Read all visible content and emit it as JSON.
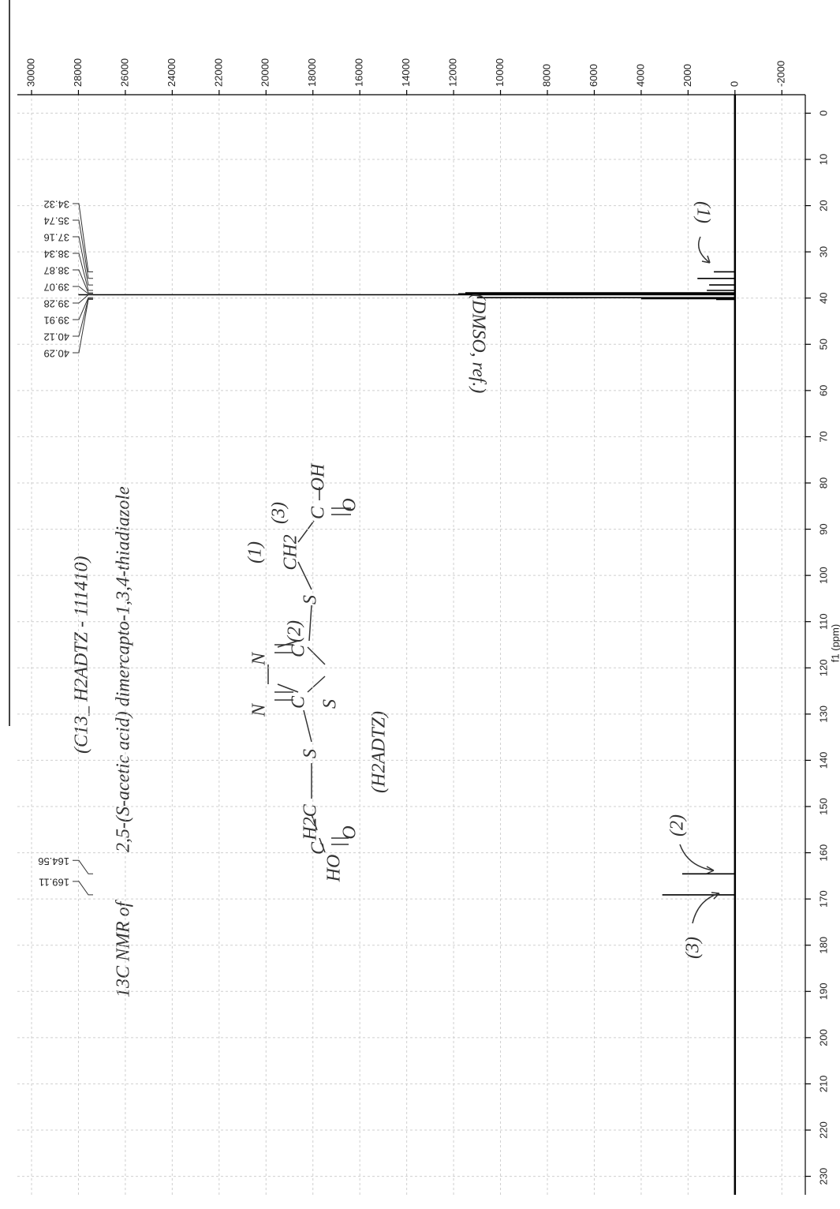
{
  "chart_data": {
    "type": "spectrum",
    "x_label": "f1 (ppm)",
    "x": [
      34.32,
      35.74,
      37.16,
      38.34,
      38.87,
      39.07,
      39.28,
      39.91,
      40.12,
      40.29,
      164.56,
      169.11
    ],
    "values": [
      900,
      1600,
      1100,
      1200,
      11500,
      11800,
      28000,
      11000,
      4000,
      800,
      2250,
      3100
    ],
    "color": "#000000",
    "xlim": [
      -4,
      234
    ],
    "xticks": [
      0,
      10,
      20,
      30,
      40,
      50,
      60,
      70,
      80,
      90,
      100,
      110,
      120,
      130,
      140,
      150,
      160,
      170,
      180,
      190,
      200,
      210,
      220,
      230
    ],
    "ylim": [
      -3000,
      30000
    ],
    "yticks": [
      -2000,
      0,
      2000,
      4000,
      6000,
      8000,
      10000,
      12000,
      14000,
      16000,
      18000,
      20000,
      22000,
      24000,
      26000,
      28000,
      30000
    ],
    "grid": true,
    "annotations": {
      "sample": "(C13_ H2ADTZ - 111410)",
      "compound": "2,5-(S-acetic acid) dimercapto-1,3,4-thiadiazole",
      "method": "13C NMR of",
      "abbreviation": "(H2ADTZ)",
      "reference": "(DMSO, ref.)",
      "peak_tags": [
        "(1)",
        "(2)",
        "(3)"
      ],
      "structure": [
        "HO",
        "C",
        "O",
        "H2C",
        "S",
        "C",
        "N",
        "N",
        "C",
        "(2)",
        "S",
        "S",
        "CH2",
        "(1)",
        "C",
        "(3)",
        "O",
        "OH"
      ]
    }
  }
}
